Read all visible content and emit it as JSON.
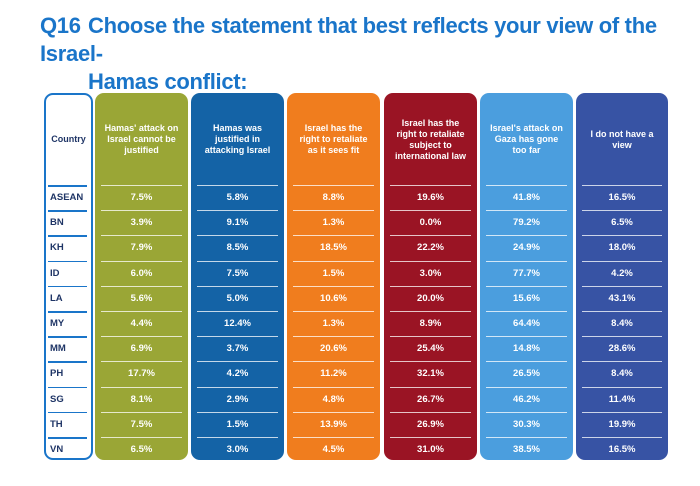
{
  "title": {
    "number": "Q16",
    "line1": "Choose the statement that best reflects your view of the Israel-",
    "line2": "Hamas conflict:"
  },
  "colors": {
    "title": "#1a75c9",
    "country_border": "#1a75c9",
    "col1": "#9aa636",
    "col2": "#1463a6",
    "col3": "#f07d1e",
    "col4": "#9a1424",
    "col5": "#4b9ede",
    "col6": "#3753a4"
  },
  "chart_data": {
    "type": "table",
    "row_header": "Country",
    "columns": [
      "Hamas' attack on Israel cannot be justified",
      "Hamas was justified in attacking Israel",
      "Israel has the right to retaliate as it sees fit",
      "Israel has the right to retaliate subject to international law",
      "Israel's attack on Gaza has gone too far",
      "I do not have a view"
    ],
    "rows": [
      {
        "country": "ASEAN",
        "values": [
          "7.5%",
          "5.8%",
          "8.8%",
          "19.6%",
          "41.8%",
          "16.5%"
        ]
      },
      {
        "country": "BN",
        "values": [
          "3.9%",
          "9.1%",
          "1.3%",
          "0.0%",
          "79.2%",
          "6.5%"
        ]
      },
      {
        "country": "KH",
        "values": [
          "7.9%",
          "8.5%",
          "18.5%",
          "22.2%",
          "24.9%",
          "18.0%"
        ]
      },
      {
        "country": "ID",
        "values": [
          "6.0%",
          "7.5%",
          "1.5%",
          "3.0%",
          "77.7%",
          "4.2%"
        ]
      },
      {
        "country": "LA",
        "values": [
          "5.6%",
          "5.0%",
          "10.6%",
          "20.0%",
          "15.6%",
          "43.1%"
        ]
      },
      {
        "country": "MY",
        "values": [
          "4.4%",
          "12.4%",
          "1.3%",
          "8.9%",
          "64.4%",
          "8.4%"
        ]
      },
      {
        "country": "MM",
        "values": [
          "6.9%",
          "3.7%",
          "20.6%",
          "25.4%",
          "14.8%",
          "28.6%"
        ]
      },
      {
        "country": "PH",
        "values": [
          "17.7%",
          "4.2%",
          "11.2%",
          "32.1%",
          "26.5%",
          "8.4%"
        ]
      },
      {
        "country": "SG",
        "values": [
          "8.1%",
          "2.9%",
          "4.8%",
          "26.7%",
          "46.2%",
          "11.4%"
        ]
      },
      {
        "country": "TH",
        "values": [
          "7.5%",
          "1.5%",
          "13.9%",
          "26.9%",
          "30.3%",
          "19.9%"
        ]
      },
      {
        "country": "VN",
        "values": [
          "6.5%",
          "3.0%",
          "4.5%",
          "31.0%",
          "38.5%",
          "16.5%"
        ]
      }
    ]
  }
}
